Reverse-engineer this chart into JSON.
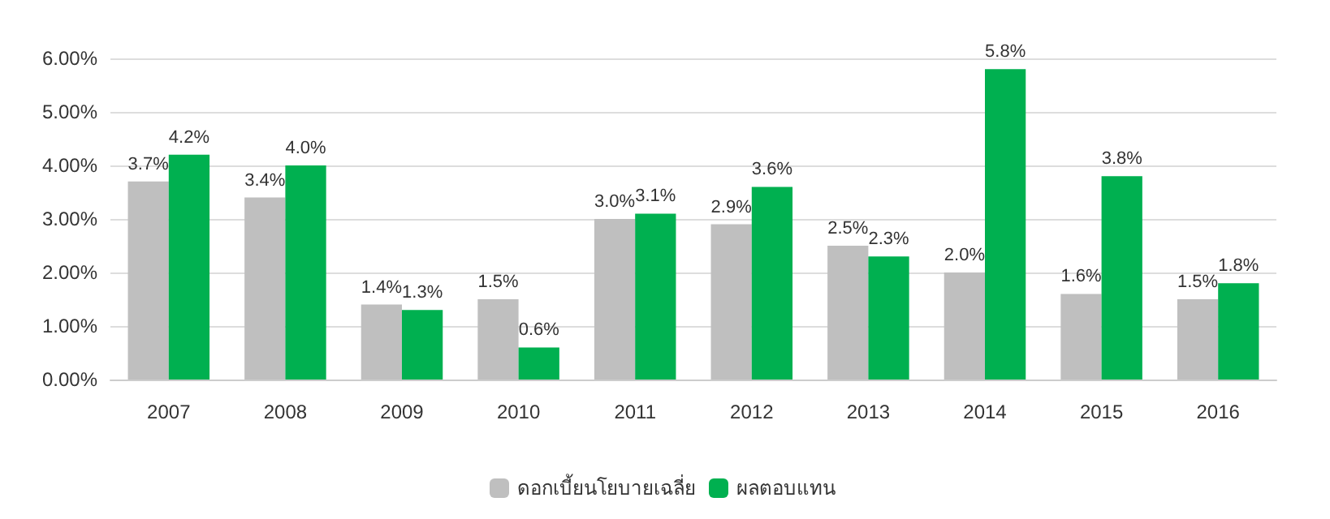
{
  "chart_data": {
    "type": "bar",
    "categories": [
      "2007",
      "2008",
      "2009",
      "2010",
      "2011",
      "2012",
      "2013",
      "2014",
      "2015",
      "2016"
    ],
    "series": [
      {
        "name": "ดอกเบี้ยนโยบายเฉลี่ย",
        "color": "#bfbfbf",
        "values": [
          3.7,
          3.4,
          1.4,
          1.5,
          3.0,
          2.9,
          2.5,
          2.0,
          1.6,
          1.5
        ],
        "value_labels": [
          "3.7%",
          "3.4%",
          "1.4%",
          "1.5%",
          "3.0%",
          "2.9%",
          "2.5%",
          "2.0%",
          "1.6%",
          "1.5%"
        ]
      },
      {
        "name": "ผลตอบแทน",
        "color": "#00b050",
        "values": [
          4.2,
          4.0,
          1.3,
          0.6,
          3.1,
          3.6,
          2.3,
          5.8,
          3.8,
          1.8
        ],
        "value_labels": [
          "4.2%",
          "4.0%",
          "1.3%",
          "0.6%",
          "3.1%",
          "3.6%",
          "2.3%",
          "5.8%",
          "3.8%",
          "1.8%"
        ]
      }
    ],
    "ylim": [
      0,
      6
    ],
    "yticks": [
      {
        "value": 0,
        "label": "0.00%"
      },
      {
        "value": 1,
        "label": "1.00%"
      },
      {
        "value": 2,
        "label": "2.00%"
      },
      {
        "value": 3,
        "label": "3.00%"
      },
      {
        "value": 4,
        "label": "4.00%"
      },
      {
        "value": 5,
        "label": "5.00%"
      },
      {
        "value": 6,
        "label": "6.00%"
      }
    ],
    "grid": "y",
    "legend": "bottom"
  }
}
